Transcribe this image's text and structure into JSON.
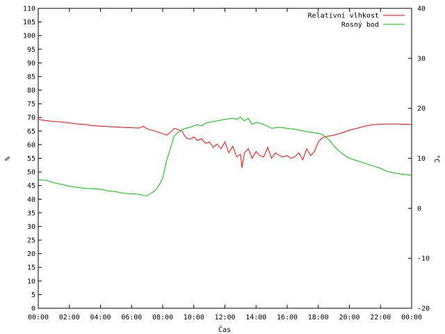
{
  "chart_data": {
    "type": "line",
    "xlabel": "Čas",
    "ylabel": "%",
    "y2label": "°C",
    "x_ticks": [
      "00:00",
      "02:00",
      "04:00",
      "06:00",
      "08:00",
      "10:00",
      "12:00",
      "14:00",
      "16:00",
      "18:00",
      "20:00",
      "22:00",
      "00:00"
    ],
    "x_range_hours": [
      0,
      24
    ],
    "ylim": [
      0,
      110
    ],
    "y_ticks": [
      0,
      5,
      10,
      15,
      20,
      25,
      30,
      35,
      40,
      45,
      50,
      55,
      60,
      65,
      70,
      75,
      80,
      85,
      90,
      95,
      100,
      105,
      110
    ],
    "y2lim": [
      -20,
      40
    ],
    "y2_ticks": [
      -20,
      -10,
      0,
      10,
      20,
      30,
      40
    ],
    "legend_position": "top-right",
    "series": [
      {
        "name": "Relativní vlhkost",
        "axis": "left",
        "color": "#ff0000",
        "x": [
          0,
          0.5,
          1,
          1.5,
          2,
          2.5,
          3,
          3.5,
          4,
          4.5,
          5,
          5.5,
          6,
          6.5,
          6.75,
          7,
          7.5,
          8,
          8.25,
          8.5,
          8.75,
          9,
          9.25,
          9.5,
          9.75,
          10,
          10.25,
          10.5,
          10.75,
          11,
          11.25,
          11.5,
          11.75,
          12,
          12.25,
          12.5,
          12.75,
          13,
          13.1,
          13.25,
          13.5,
          13.75,
          14,
          14.25,
          14.5,
          14.75,
          15,
          15.25,
          15.5,
          15.75,
          16,
          16.25,
          16.5,
          16.75,
          17,
          17.25,
          17.5,
          17.75,
          18,
          18.25,
          18.5,
          19,
          19.5,
          20,
          20.5,
          21,
          21.5,
          22,
          22.5,
          23,
          23.5,
          24
        ],
        "y": [
          69.3,
          68.8,
          68.5,
          68.3,
          68.0,
          67.6,
          67.4,
          67.0,
          66.8,
          66.6,
          66.5,
          66.3,
          66.2,
          66.1,
          66.8,
          65.8,
          65.0,
          64.0,
          63.5,
          64.5,
          66.0,
          65.5,
          64.8,
          62.5,
          62.0,
          62.8,
          61.5,
          62.2,
          60.5,
          61.0,
          59.0,
          60.2,
          58.5,
          61.0,
          57.0,
          59.5,
          55.5,
          56.5,
          51.5,
          57.0,
          58.5,
          55.0,
          57.5,
          56.0,
          55.5,
          59.0,
          55.0,
          57.0,
          56.0,
          55.5,
          56.0,
          55.0,
          55.5,
          57.0,
          54.5,
          58.5,
          56.0,
          57.5,
          61.0,
          62.5,
          63.0,
          63.5,
          64.3,
          65.3,
          66.0,
          66.8,
          67.3,
          67.5,
          67.6,
          67.6,
          67.5,
          67.4
        ]
      },
      {
        "name": "Rosný bod",
        "axis": "right",
        "color": "#00c000",
        "x": [
          0,
          0.5,
          1,
          1.5,
          2,
          2.5,
          3,
          3.5,
          4,
          4.5,
          5,
          5.5,
          6,
          6.5,
          6.75,
          7,
          7.25,
          7.5,
          7.75,
          8,
          8.25,
          8.5,
          8.75,
          9,
          9.25,
          9.5,
          9.75,
          10,
          10.25,
          10.5,
          10.75,
          11,
          11.5,
          12,
          12.5,
          12.75,
          13,
          13.25,
          13.5,
          13.75,
          14,
          14.5,
          15,
          15.5,
          16,
          16.5,
          17,
          17.5,
          18,
          18.25,
          18.5,
          18.75,
          19,
          19.5,
          20,
          20.5,
          21,
          21.5,
          22,
          22.5,
          23,
          23.5,
          24
        ],
        "y": [
          5.7,
          5.6,
          5.1,
          4.8,
          4.4,
          4.2,
          4.0,
          3.9,
          3.8,
          3.5,
          3.3,
          3.0,
          2.9,
          2.8,
          2.6,
          2.5,
          3.0,
          3.5,
          4.5,
          6.0,
          9.5,
          12.0,
          14.5,
          15.2,
          15.8,
          16.0,
          16.2,
          16.5,
          16.7,
          16.5,
          17.0,
          17.2,
          17.5,
          17.8,
          18.0,
          17.8,
          18.2,
          17.5,
          18.0,
          16.8,
          17.2,
          16.8,
          16.0,
          16.2,
          16.0,
          15.8,
          15.5,
          15.2,
          15.0,
          14.8,
          14.2,
          13.5,
          12.5,
          11.0,
          10.0,
          9.5,
          9.0,
          8.5,
          8.0,
          7.3,
          7.0,
          6.8,
          6.6
        ]
      }
    ]
  }
}
